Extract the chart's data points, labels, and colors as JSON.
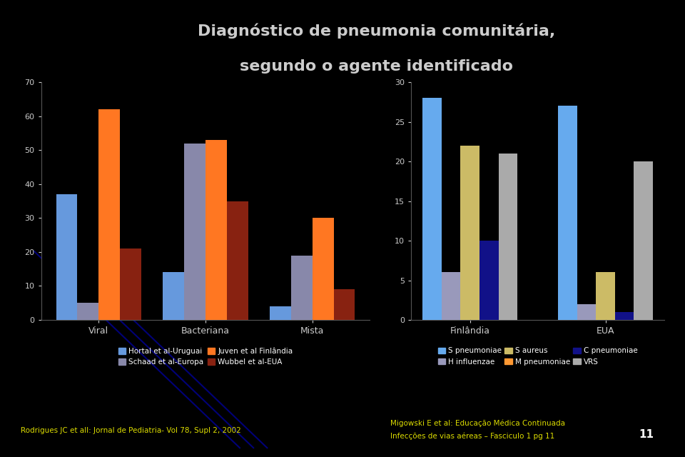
{
  "title_line1": "Diagnóstico de pneumonia comunitária,",
  "title_line2": "segundo o agente identificado",
  "background_color": "#000000",
  "title_color": "#cccccc",
  "axis_bg": "#000000",
  "text_color": "#ffffff",
  "tick_color": "#cccccc",
  "spine_color": "#555555",
  "chart1": {
    "categories": [
      "Viral",
      "Bacteriana",
      "Mista"
    ],
    "series": [
      {
        "label": "Hortal et al-Uruguai",
        "color": "#6699dd",
        "values": [
          37,
          14,
          4
        ]
      },
      {
        "label": "Schaad et al-Europa",
        "color": "#8888aa",
        "values": [
          5,
          52,
          19
        ]
      },
      {
        "label": "Juven et al Finlândia",
        "color": "#ff7722",
        "values": [
          62,
          53,
          30
        ]
      },
      {
        "label": "Wubbel et al-EUA",
        "color": "#882211",
        "values": [
          21,
          35,
          9
        ]
      }
    ],
    "ylim": [
      0,
      70
    ],
    "yticks": [
      0,
      10,
      20,
      30,
      40,
      50,
      60,
      70
    ]
  },
  "chart2": {
    "categories": [
      "Finlândia",
      "EUA"
    ],
    "series": [
      {
        "label": "S pneumoniae",
        "color": "#66aaee",
        "values": [
          28,
          27
        ]
      },
      {
        "label": "H influenzae",
        "color": "#9999bb",
        "values": [
          6,
          2
        ]
      },
      {
        "label": "S aureus",
        "color": "#ccbb66",
        "values": [
          22,
          6
        ]
      },
      {
        "label": "C pneumoniae",
        "color": "#111188",
        "values": [
          10,
          1
        ]
      },
      {
        "label": "VRS",
        "color": "#aaaaaa",
        "values": [
          21,
          20
        ]
      }
    ],
    "legend_series": [
      {
        "label": "S pneumoniae",
        "color": "#66aaee"
      },
      {
        "label": "H influenzae",
        "color": "#9999bb"
      },
      {
        "label": "S aureus",
        "color": "#ccbb66"
      },
      {
        "label": "M pneumoniae",
        "color": "#ff9933"
      },
      {
        "label": "C pneumoniae",
        "color": "#111188"
      },
      {
        "label": "VRS",
        "color": "#aaaaaa"
      }
    ],
    "ylim": [
      0,
      30
    ],
    "yticks": [
      0,
      5,
      10,
      15,
      20,
      25,
      30
    ]
  },
  "footer_left": "Rodrigues JC et all: Jornal de Pediatria- Vol 78, Supl 2, 2002",
  "footer_right_line1": "Migowski E et al: Educação Médica Continuada",
  "footer_right_line2": "Infecções de vias aéreas – Fasciculo 1 pg 11",
  "footer_right_number": "11",
  "footer_color": "#dddd00"
}
